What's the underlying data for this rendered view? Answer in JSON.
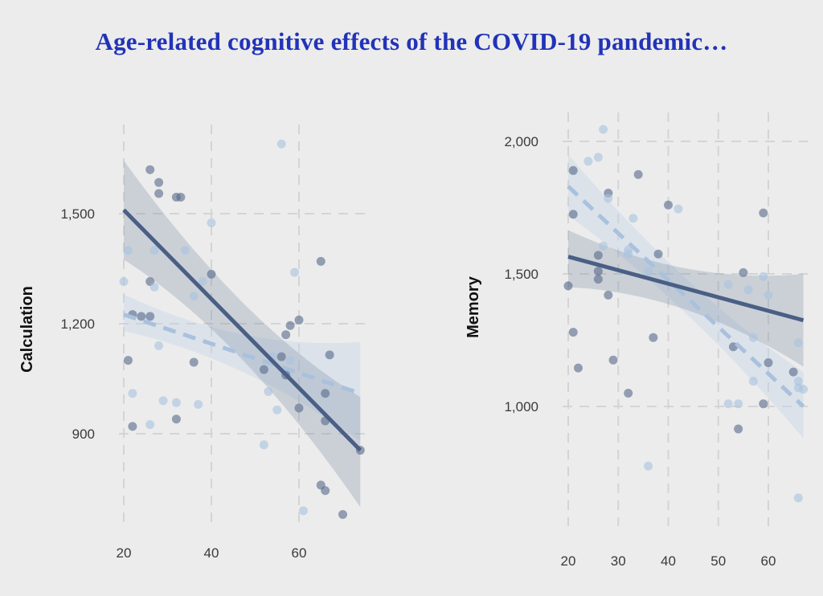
{
  "title": "Age-related cognitive effects of the COVID-19 pandemic…",
  "chart_data": [
    {
      "type": "scatter",
      "title": "",
      "xlabel": "",
      "ylabel": "Calculation",
      "xlim": [
        18,
        76
      ],
      "ylim": [
        660,
        1720
      ],
      "x_ticks": [
        20,
        40,
        60
      ],
      "x_tick_labels": [
        "20",
        "40",
        "60"
      ],
      "y_ticks": [
        900,
        1200,
        1500
      ],
      "y_tick_labels": [
        "900",
        "1,200",
        "1,500"
      ],
      "grid": true,
      "series": [
        {
          "name": "group-solid",
          "color": "#4a5f85",
          "line_style": "solid",
          "fit": {
            "x": [
              20,
              74
            ],
            "y": [
              1510,
              855
            ]
          },
          "ci_band": {
            "x": [
              20,
              74
            ],
            "lower": [
              1375,
              700
            ],
            "upper": [
              1645,
              1000
            ]
          },
          "points": [
            {
              "x": 26,
              "y": 1620
            },
            {
              "x": 28,
              "y": 1585
            },
            {
              "x": 28,
              "y": 1555
            },
            {
              "x": 32,
              "y": 1545
            },
            {
              "x": 33,
              "y": 1545
            },
            {
              "x": 26,
              "y": 1315
            },
            {
              "x": 22,
              "y": 1225
            },
            {
              "x": 24,
              "y": 1220
            },
            {
              "x": 26,
              "y": 1220
            },
            {
              "x": 36,
              "y": 1095
            },
            {
              "x": 21,
              "y": 1100
            },
            {
              "x": 32,
              "y": 940
            },
            {
              "x": 22,
              "y": 920
            },
            {
              "x": 40,
              "y": 1335
            },
            {
              "x": 65,
              "y": 1370
            },
            {
              "x": 60,
              "y": 1210
            },
            {
              "x": 58,
              "y": 1195
            },
            {
              "x": 57,
              "y": 1170
            },
            {
              "x": 56,
              "y": 1110
            },
            {
              "x": 52,
              "y": 1075
            },
            {
              "x": 57,
              "y": 1060
            },
            {
              "x": 67,
              "y": 1115
            },
            {
              "x": 66,
              "y": 1010
            },
            {
              "x": 60,
              "y": 970
            },
            {
              "x": 66,
              "y": 935
            },
            {
              "x": 74,
              "y": 855
            },
            {
              "x": 65,
              "y": 760
            },
            {
              "x": 66,
              "y": 745
            },
            {
              "x": 70,
              "y": 680
            }
          ]
        },
        {
          "name": "group-dashed",
          "color": "#a9c1dc",
          "line_style": "dashed",
          "fit": {
            "x": [
              20,
              74
            ],
            "y": [
              1225,
              1010
            ]
          },
          "ci_band": {
            "x": [
              20,
              74
            ],
            "lower": [
              1180,
              880
            ],
            "upper": [
              1280,
              1150
            ]
          },
          "points": [
            {
              "x": 56,
              "y": 1690
            },
            {
              "x": 40,
              "y": 1475
            },
            {
              "x": 21,
              "y": 1400
            },
            {
              "x": 27,
              "y": 1400
            },
            {
              "x": 34,
              "y": 1400
            },
            {
              "x": 20,
              "y": 1315
            },
            {
              "x": 27,
              "y": 1300
            },
            {
              "x": 38,
              "y": 1315
            },
            {
              "x": 36,
              "y": 1275
            },
            {
              "x": 59,
              "y": 1340
            },
            {
              "x": 28,
              "y": 1140
            },
            {
              "x": 22,
              "y": 1010
            },
            {
              "x": 29,
              "y": 990
            },
            {
              "x": 32,
              "y": 985
            },
            {
              "x": 37,
              "y": 980
            },
            {
              "x": 26,
              "y": 925
            },
            {
              "x": 54,
              "y": 1110
            },
            {
              "x": 55,
              "y": 965
            },
            {
              "x": 53,
              "y": 1015
            },
            {
              "x": 52,
              "y": 870
            },
            {
              "x": 58,
              "y": 1100
            },
            {
              "x": 61,
              "y": 690
            }
          ]
        }
      ]
    },
    {
      "type": "scatter",
      "title": "",
      "xlabel": "",
      "ylabel": "Memory",
      "xlim": [
        17.5,
        68.5
      ],
      "ylim": [
        620,
        2080
      ],
      "x_ticks": [
        20,
        30,
        40,
        50,
        60
      ],
      "x_tick_labels": [
        "20",
        "30",
        "40",
        "50",
        "60"
      ],
      "y_ticks": [
        1000,
        1500,
        2000
      ],
      "y_tick_labels": [
        "1,000",
        "1,500",
        "2,000"
      ],
      "grid": true,
      "series": [
        {
          "name": "group-solid",
          "color": "#4a5f85",
          "line_style": "solid",
          "fit": {
            "x": [
              20,
              67
            ],
            "y": [
              1565,
              1325
            ]
          },
          "ci_band": {
            "x": [
              20,
              67
            ],
            "lower": [
              1450,
              1150
            ],
            "upper": [
              1665,
              1500
            ]
          },
          "points": [
            {
              "x": 21,
              "y": 1890
            },
            {
              "x": 34,
              "y": 1875
            },
            {
              "x": 28,
              "y": 1805
            },
            {
              "x": 21,
              "y": 1725
            },
            {
              "x": 40,
              "y": 1760
            },
            {
              "x": 59,
              "y": 1730
            },
            {
              "x": 26,
              "y": 1570
            },
            {
              "x": 38,
              "y": 1575
            },
            {
              "x": 26,
              "y": 1510
            },
            {
              "x": 26,
              "y": 1480
            },
            {
              "x": 20,
              "y": 1455
            },
            {
              "x": 28,
              "y": 1420
            },
            {
              "x": 55,
              "y": 1505
            },
            {
              "x": 21,
              "y": 1280
            },
            {
              "x": 37,
              "y": 1260
            },
            {
              "x": 22,
              "y": 1145
            },
            {
              "x": 29,
              "y": 1175
            },
            {
              "x": 32,
              "y": 1050
            },
            {
              "x": 53,
              "y": 1225
            },
            {
              "x": 60,
              "y": 1165
            },
            {
              "x": 65,
              "y": 1130
            },
            {
              "x": 59,
              "y": 1010
            },
            {
              "x": 54,
              "y": 915
            }
          ]
        },
        {
          "name": "group-dashed",
          "color": "#a9c1dc",
          "line_style": "dashed",
          "fit": {
            "x": [
              20,
              67
            ],
            "y": [
              1830,
              1000
            ]
          },
          "ci_band": {
            "x": [
              20,
              67
            ],
            "lower": [
              1720,
              880
            ],
            "upper": [
              1950,
              1130
            ]
          },
          "points": [
            {
              "x": 27,
              "y": 2045
            },
            {
              "x": 24,
              "y": 1925
            },
            {
              "x": 26,
              "y": 1940
            },
            {
              "x": 28,
              "y": 1785
            },
            {
              "x": 33,
              "y": 1710
            },
            {
              "x": 42,
              "y": 1745
            },
            {
              "x": 27,
              "y": 1605
            },
            {
              "x": 32,
              "y": 1590
            },
            {
              "x": 32,
              "y": 1575
            },
            {
              "x": 36,
              "y": 1510
            },
            {
              "x": 52,
              "y": 1460
            },
            {
              "x": 56,
              "y": 1440
            },
            {
              "x": 60,
              "y": 1420
            },
            {
              "x": 59,
              "y": 1490
            },
            {
              "x": 57,
              "y": 1260
            },
            {
              "x": 57,
              "y": 1095
            },
            {
              "x": 66,
              "y": 1240
            },
            {
              "x": 66,
              "y": 1095
            },
            {
              "x": 66,
              "y": 1070
            },
            {
              "x": 67,
              "y": 1065
            },
            {
              "x": 52,
              "y": 1010
            },
            {
              "x": 54,
              "y": 1010
            },
            {
              "x": 36,
              "y": 775
            },
            {
              "x": 66,
              "y": 655
            }
          ]
        }
      ]
    }
  ]
}
